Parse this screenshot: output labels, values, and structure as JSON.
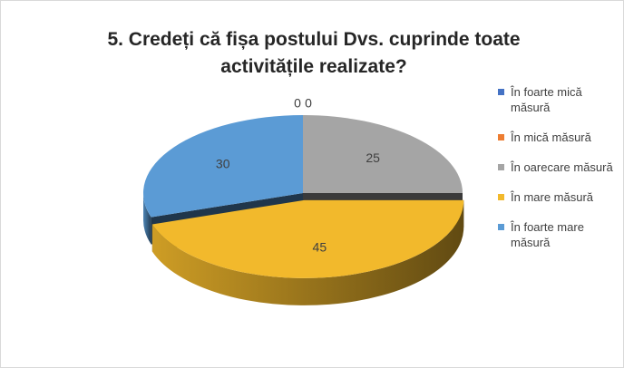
{
  "chart_data": {
    "type": "pie",
    "title": "5. Credeți că fișa postului Dvs. cuprinde toate activitățile realizate?",
    "series": [
      {
        "name": "În foarte mică măsură",
        "color": "#4472c4",
        "values": [
          0
        ]
      },
      {
        "name": "În mică măsură",
        "color": "#ed7d31",
        "values": [
          0
        ]
      },
      {
        "name": "În oarecare măsură",
        "color": "#a5a5a5",
        "values": [
          25
        ]
      },
      {
        "name": "În mare măsură",
        "color": "#f2b92c",
        "values": [
          45
        ]
      },
      {
        "name": "În foarte mare măsură",
        "color": "#5b9bd5",
        "values": [
          30
        ]
      }
    ],
    "legend": "right"
  }
}
